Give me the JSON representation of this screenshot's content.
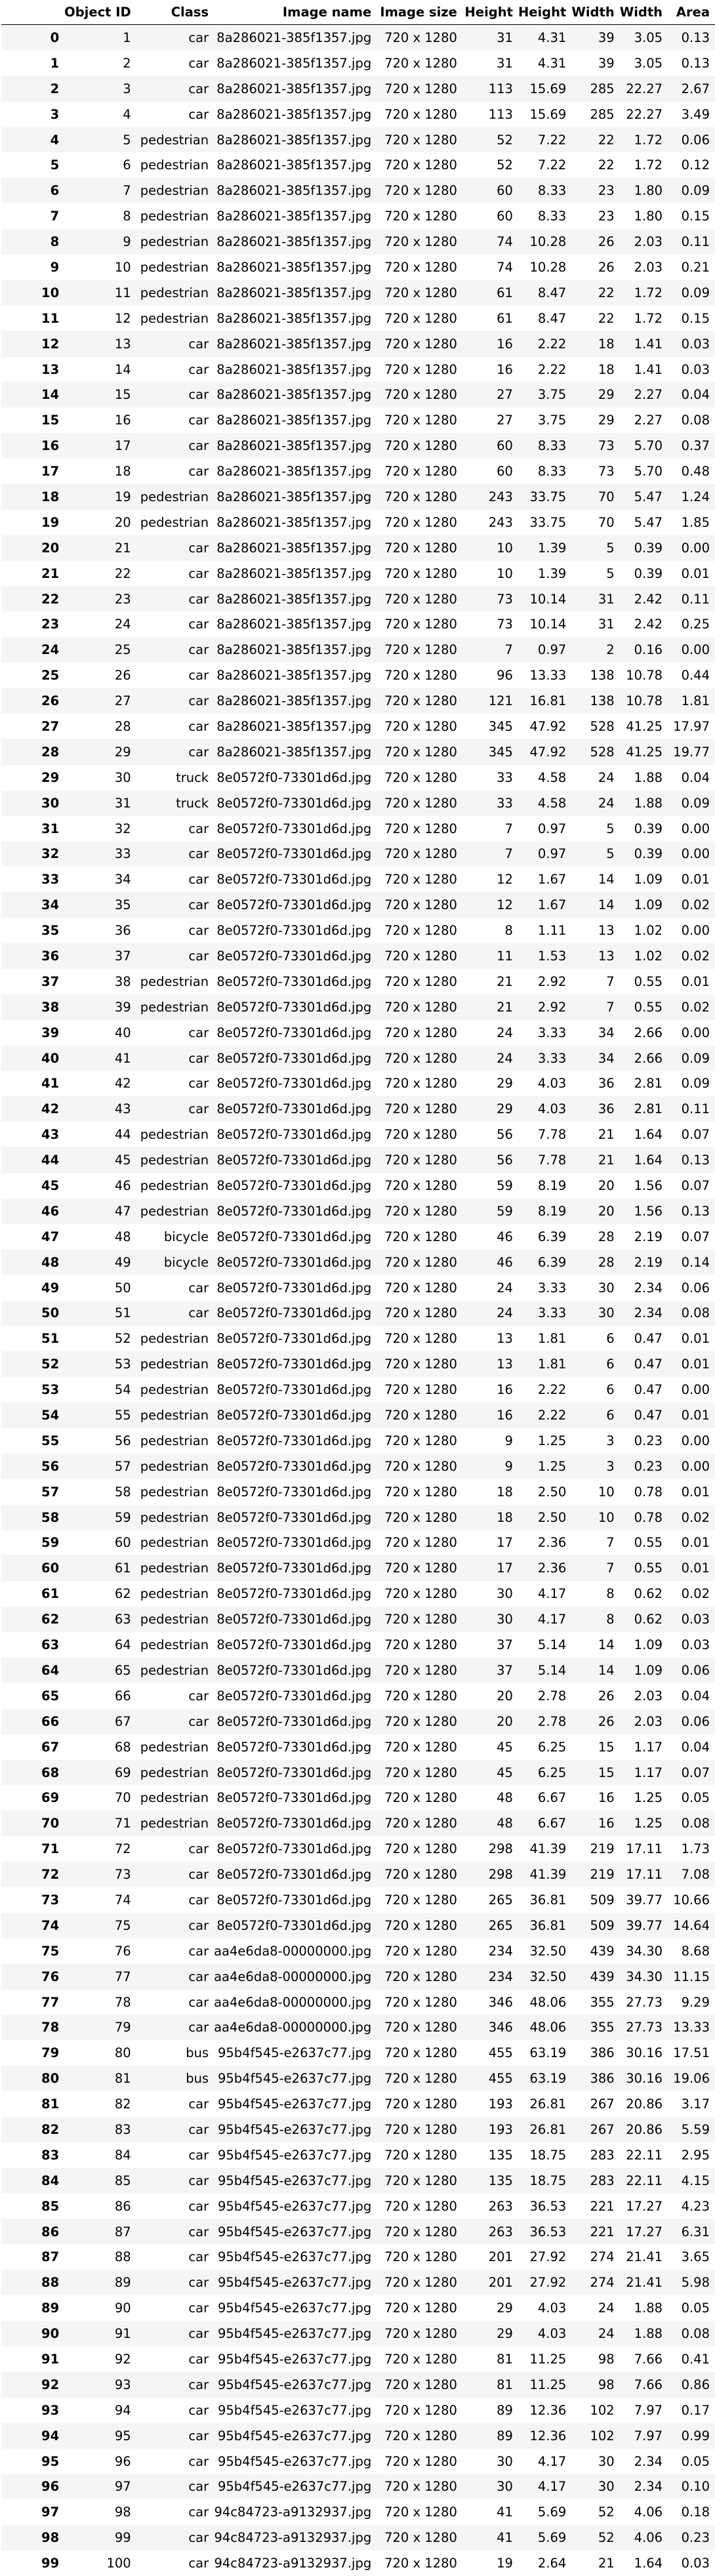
{
  "table": {
    "columns": [
      "",
      "Object ID",
      "Class",
      "Image name",
      "Image size",
      "Height",
      "Height",
      "Width",
      "Width",
      "Area"
    ],
    "rows": [
      [
        "0",
        "1",
        "car",
        "8a286021-385f1357.jpg",
        "720 x 1280",
        "31",
        "4.31",
        "39",
        "3.05",
        "0.13"
      ],
      [
        "1",
        "2",
        "car",
        "8a286021-385f1357.jpg",
        "720 x 1280",
        "31",
        "4.31",
        "39",
        "3.05",
        "0.13"
      ],
      [
        "2",
        "3",
        "car",
        "8a286021-385f1357.jpg",
        "720 x 1280",
        "113",
        "15.69",
        "285",
        "22.27",
        "2.67"
      ],
      [
        "3",
        "4",
        "car",
        "8a286021-385f1357.jpg",
        "720 x 1280",
        "113",
        "15.69",
        "285",
        "22.27",
        "3.49"
      ],
      [
        "4",
        "5",
        "pedestrian",
        "8a286021-385f1357.jpg",
        "720 x 1280",
        "52",
        "7.22",
        "22",
        "1.72",
        "0.06"
      ],
      [
        "5",
        "6",
        "pedestrian",
        "8a286021-385f1357.jpg",
        "720 x 1280",
        "52",
        "7.22",
        "22",
        "1.72",
        "0.12"
      ],
      [
        "6",
        "7",
        "pedestrian",
        "8a286021-385f1357.jpg",
        "720 x 1280",
        "60",
        "8.33",
        "23",
        "1.80",
        "0.09"
      ],
      [
        "7",
        "8",
        "pedestrian",
        "8a286021-385f1357.jpg",
        "720 x 1280",
        "60",
        "8.33",
        "23",
        "1.80",
        "0.15"
      ],
      [
        "8",
        "9",
        "pedestrian",
        "8a286021-385f1357.jpg",
        "720 x 1280",
        "74",
        "10.28",
        "26",
        "2.03",
        "0.11"
      ],
      [
        "9",
        "10",
        "pedestrian",
        "8a286021-385f1357.jpg",
        "720 x 1280",
        "74",
        "10.28",
        "26",
        "2.03",
        "0.21"
      ],
      [
        "10",
        "11",
        "pedestrian",
        "8a286021-385f1357.jpg",
        "720 x 1280",
        "61",
        "8.47",
        "22",
        "1.72",
        "0.09"
      ],
      [
        "11",
        "12",
        "pedestrian",
        "8a286021-385f1357.jpg",
        "720 x 1280",
        "61",
        "8.47",
        "22",
        "1.72",
        "0.15"
      ],
      [
        "12",
        "13",
        "car",
        "8a286021-385f1357.jpg",
        "720 x 1280",
        "16",
        "2.22",
        "18",
        "1.41",
        "0.03"
      ],
      [
        "13",
        "14",
        "car",
        "8a286021-385f1357.jpg",
        "720 x 1280",
        "16",
        "2.22",
        "18",
        "1.41",
        "0.03"
      ],
      [
        "14",
        "15",
        "car",
        "8a286021-385f1357.jpg",
        "720 x 1280",
        "27",
        "3.75",
        "29",
        "2.27",
        "0.04"
      ],
      [
        "15",
        "16",
        "car",
        "8a286021-385f1357.jpg",
        "720 x 1280",
        "27",
        "3.75",
        "29",
        "2.27",
        "0.08"
      ],
      [
        "16",
        "17",
        "car",
        "8a286021-385f1357.jpg",
        "720 x 1280",
        "60",
        "8.33",
        "73",
        "5.70",
        "0.37"
      ],
      [
        "17",
        "18",
        "car",
        "8a286021-385f1357.jpg",
        "720 x 1280",
        "60",
        "8.33",
        "73",
        "5.70",
        "0.48"
      ],
      [
        "18",
        "19",
        "pedestrian",
        "8a286021-385f1357.jpg",
        "720 x 1280",
        "243",
        "33.75",
        "70",
        "5.47",
        "1.24"
      ],
      [
        "19",
        "20",
        "pedestrian",
        "8a286021-385f1357.jpg",
        "720 x 1280",
        "243",
        "33.75",
        "70",
        "5.47",
        "1.85"
      ],
      [
        "20",
        "21",
        "car",
        "8a286021-385f1357.jpg",
        "720 x 1280",
        "10",
        "1.39",
        "5",
        "0.39",
        "0.00"
      ],
      [
        "21",
        "22",
        "car",
        "8a286021-385f1357.jpg",
        "720 x 1280",
        "10",
        "1.39",
        "5",
        "0.39",
        "0.01"
      ],
      [
        "22",
        "23",
        "car",
        "8a286021-385f1357.jpg",
        "720 x 1280",
        "73",
        "10.14",
        "31",
        "2.42",
        "0.11"
      ],
      [
        "23",
        "24",
        "car",
        "8a286021-385f1357.jpg",
        "720 x 1280",
        "73",
        "10.14",
        "31",
        "2.42",
        "0.25"
      ],
      [
        "24",
        "25",
        "car",
        "8a286021-385f1357.jpg",
        "720 x 1280",
        "7",
        "0.97",
        "2",
        "0.16",
        "0.00"
      ],
      [
        "25",
        "26",
        "car",
        "8a286021-385f1357.jpg",
        "720 x 1280",
        "96",
        "13.33",
        "138",
        "10.78",
        "0.44"
      ],
      [
        "26",
        "27",
        "car",
        "8a286021-385f1357.jpg",
        "720 x 1280",
        "121",
        "16.81",
        "138",
        "10.78",
        "1.81"
      ],
      [
        "27",
        "28",
        "car",
        "8a286021-385f1357.jpg",
        "720 x 1280",
        "345",
        "47.92",
        "528",
        "41.25",
        "17.97"
      ],
      [
        "28",
        "29",
        "car",
        "8a286021-385f1357.jpg",
        "720 x 1280",
        "345",
        "47.92",
        "528",
        "41.25",
        "19.77"
      ],
      [
        "29",
        "30",
        "truck",
        "8e0572f0-73301d6d.jpg",
        "720 x 1280",
        "33",
        "4.58",
        "24",
        "1.88",
        "0.04"
      ],
      [
        "30",
        "31",
        "truck",
        "8e0572f0-73301d6d.jpg",
        "720 x 1280",
        "33",
        "4.58",
        "24",
        "1.88",
        "0.09"
      ],
      [
        "31",
        "32",
        "car",
        "8e0572f0-73301d6d.jpg",
        "720 x 1280",
        "7",
        "0.97",
        "5",
        "0.39",
        "0.00"
      ],
      [
        "32",
        "33",
        "car",
        "8e0572f0-73301d6d.jpg",
        "720 x 1280",
        "7",
        "0.97",
        "5",
        "0.39",
        "0.00"
      ],
      [
        "33",
        "34",
        "car",
        "8e0572f0-73301d6d.jpg",
        "720 x 1280",
        "12",
        "1.67",
        "14",
        "1.09",
        "0.01"
      ],
      [
        "34",
        "35",
        "car",
        "8e0572f0-73301d6d.jpg",
        "720 x 1280",
        "12",
        "1.67",
        "14",
        "1.09",
        "0.02"
      ],
      [
        "35",
        "36",
        "car",
        "8e0572f0-73301d6d.jpg",
        "720 x 1280",
        "8",
        "1.11",
        "13",
        "1.02",
        "0.00"
      ],
      [
        "36",
        "37",
        "car",
        "8e0572f0-73301d6d.jpg",
        "720 x 1280",
        "11",
        "1.53",
        "13",
        "1.02",
        "0.02"
      ],
      [
        "37",
        "38",
        "pedestrian",
        "8e0572f0-73301d6d.jpg",
        "720 x 1280",
        "21",
        "2.92",
        "7",
        "0.55",
        "0.01"
      ],
      [
        "38",
        "39",
        "pedestrian",
        "8e0572f0-73301d6d.jpg",
        "720 x 1280",
        "21",
        "2.92",
        "7",
        "0.55",
        "0.02"
      ],
      [
        "39",
        "40",
        "car",
        "8e0572f0-73301d6d.jpg",
        "720 x 1280",
        "24",
        "3.33",
        "34",
        "2.66",
        "0.00"
      ],
      [
        "40",
        "41",
        "car",
        "8e0572f0-73301d6d.jpg",
        "720 x 1280",
        "24",
        "3.33",
        "34",
        "2.66",
        "0.09"
      ],
      [
        "41",
        "42",
        "car",
        "8e0572f0-73301d6d.jpg",
        "720 x 1280",
        "29",
        "4.03",
        "36",
        "2.81",
        "0.09"
      ],
      [
        "42",
        "43",
        "car",
        "8e0572f0-73301d6d.jpg",
        "720 x 1280",
        "29",
        "4.03",
        "36",
        "2.81",
        "0.11"
      ],
      [
        "43",
        "44",
        "pedestrian",
        "8e0572f0-73301d6d.jpg",
        "720 x 1280",
        "56",
        "7.78",
        "21",
        "1.64",
        "0.07"
      ],
      [
        "44",
        "45",
        "pedestrian",
        "8e0572f0-73301d6d.jpg",
        "720 x 1280",
        "56",
        "7.78",
        "21",
        "1.64",
        "0.13"
      ],
      [
        "45",
        "46",
        "pedestrian",
        "8e0572f0-73301d6d.jpg",
        "720 x 1280",
        "59",
        "8.19",
        "20",
        "1.56",
        "0.07"
      ],
      [
        "46",
        "47",
        "pedestrian",
        "8e0572f0-73301d6d.jpg",
        "720 x 1280",
        "59",
        "8.19",
        "20",
        "1.56",
        "0.13"
      ],
      [
        "47",
        "48",
        "bicycle",
        "8e0572f0-73301d6d.jpg",
        "720 x 1280",
        "46",
        "6.39",
        "28",
        "2.19",
        "0.07"
      ],
      [
        "48",
        "49",
        "bicycle",
        "8e0572f0-73301d6d.jpg",
        "720 x 1280",
        "46",
        "6.39",
        "28",
        "2.19",
        "0.14"
      ],
      [
        "49",
        "50",
        "car",
        "8e0572f0-73301d6d.jpg",
        "720 x 1280",
        "24",
        "3.33",
        "30",
        "2.34",
        "0.06"
      ],
      [
        "50",
        "51",
        "car",
        "8e0572f0-73301d6d.jpg",
        "720 x 1280",
        "24",
        "3.33",
        "30",
        "2.34",
        "0.08"
      ],
      [
        "51",
        "52",
        "pedestrian",
        "8e0572f0-73301d6d.jpg",
        "720 x 1280",
        "13",
        "1.81",
        "6",
        "0.47",
        "0.01"
      ],
      [
        "52",
        "53",
        "pedestrian",
        "8e0572f0-73301d6d.jpg",
        "720 x 1280",
        "13",
        "1.81",
        "6",
        "0.47",
        "0.01"
      ],
      [
        "53",
        "54",
        "pedestrian",
        "8e0572f0-73301d6d.jpg",
        "720 x 1280",
        "16",
        "2.22",
        "6",
        "0.47",
        "0.00"
      ],
      [
        "54",
        "55",
        "pedestrian",
        "8e0572f0-73301d6d.jpg",
        "720 x 1280",
        "16",
        "2.22",
        "6",
        "0.47",
        "0.01"
      ],
      [
        "55",
        "56",
        "pedestrian",
        "8e0572f0-73301d6d.jpg",
        "720 x 1280",
        "9",
        "1.25",
        "3",
        "0.23",
        "0.00"
      ],
      [
        "56",
        "57",
        "pedestrian",
        "8e0572f0-73301d6d.jpg",
        "720 x 1280",
        "9",
        "1.25",
        "3",
        "0.23",
        "0.00"
      ],
      [
        "57",
        "58",
        "pedestrian",
        "8e0572f0-73301d6d.jpg",
        "720 x 1280",
        "18",
        "2.50",
        "10",
        "0.78",
        "0.01"
      ],
      [
        "58",
        "59",
        "pedestrian",
        "8e0572f0-73301d6d.jpg",
        "720 x 1280",
        "18",
        "2.50",
        "10",
        "0.78",
        "0.02"
      ],
      [
        "59",
        "60",
        "pedestrian",
        "8e0572f0-73301d6d.jpg",
        "720 x 1280",
        "17",
        "2.36",
        "7",
        "0.55",
        "0.01"
      ],
      [
        "60",
        "61",
        "pedestrian",
        "8e0572f0-73301d6d.jpg",
        "720 x 1280",
        "17",
        "2.36",
        "7",
        "0.55",
        "0.01"
      ],
      [
        "61",
        "62",
        "pedestrian",
        "8e0572f0-73301d6d.jpg",
        "720 x 1280",
        "30",
        "4.17",
        "8",
        "0.62",
        "0.02"
      ],
      [
        "62",
        "63",
        "pedestrian",
        "8e0572f0-73301d6d.jpg",
        "720 x 1280",
        "30",
        "4.17",
        "8",
        "0.62",
        "0.03"
      ],
      [
        "63",
        "64",
        "pedestrian",
        "8e0572f0-73301d6d.jpg",
        "720 x 1280",
        "37",
        "5.14",
        "14",
        "1.09",
        "0.03"
      ],
      [
        "64",
        "65",
        "pedestrian",
        "8e0572f0-73301d6d.jpg",
        "720 x 1280",
        "37",
        "5.14",
        "14",
        "1.09",
        "0.06"
      ],
      [
        "65",
        "66",
        "car",
        "8e0572f0-73301d6d.jpg",
        "720 x 1280",
        "20",
        "2.78",
        "26",
        "2.03",
        "0.04"
      ],
      [
        "66",
        "67",
        "car",
        "8e0572f0-73301d6d.jpg",
        "720 x 1280",
        "20",
        "2.78",
        "26",
        "2.03",
        "0.06"
      ],
      [
        "67",
        "68",
        "pedestrian",
        "8e0572f0-73301d6d.jpg",
        "720 x 1280",
        "45",
        "6.25",
        "15",
        "1.17",
        "0.04"
      ],
      [
        "68",
        "69",
        "pedestrian",
        "8e0572f0-73301d6d.jpg",
        "720 x 1280",
        "45",
        "6.25",
        "15",
        "1.17",
        "0.07"
      ],
      [
        "69",
        "70",
        "pedestrian",
        "8e0572f0-73301d6d.jpg",
        "720 x 1280",
        "48",
        "6.67",
        "16",
        "1.25",
        "0.05"
      ],
      [
        "70",
        "71",
        "pedestrian",
        "8e0572f0-73301d6d.jpg",
        "720 x 1280",
        "48",
        "6.67",
        "16",
        "1.25",
        "0.08"
      ],
      [
        "71",
        "72",
        "car",
        "8e0572f0-73301d6d.jpg",
        "720 x 1280",
        "298",
        "41.39",
        "219",
        "17.11",
        "1.73"
      ],
      [
        "72",
        "73",
        "car",
        "8e0572f0-73301d6d.jpg",
        "720 x 1280",
        "298",
        "41.39",
        "219",
        "17.11",
        "7.08"
      ],
      [
        "73",
        "74",
        "car",
        "8e0572f0-73301d6d.jpg",
        "720 x 1280",
        "265",
        "36.81",
        "509",
        "39.77",
        "10.66"
      ],
      [
        "74",
        "75",
        "car",
        "8e0572f0-73301d6d.jpg",
        "720 x 1280",
        "265",
        "36.81",
        "509",
        "39.77",
        "14.64"
      ],
      [
        "75",
        "76",
        "car",
        "aa4e6da8-00000000.jpg",
        "720 x 1280",
        "234",
        "32.50",
        "439",
        "34.30",
        "8.68"
      ],
      [
        "76",
        "77",
        "car",
        "aa4e6da8-00000000.jpg",
        "720 x 1280",
        "234",
        "32.50",
        "439",
        "34.30",
        "11.15"
      ],
      [
        "77",
        "78",
        "car",
        "aa4e6da8-00000000.jpg",
        "720 x 1280",
        "346",
        "48.06",
        "355",
        "27.73",
        "9.29"
      ],
      [
        "78",
        "79",
        "car",
        "aa4e6da8-00000000.jpg",
        "720 x 1280",
        "346",
        "48.06",
        "355",
        "27.73",
        "13.33"
      ],
      [
        "79",
        "80",
        "bus",
        "95b4f545-e2637c77.jpg",
        "720 x 1280",
        "455",
        "63.19",
        "386",
        "30.16",
        "17.51"
      ],
      [
        "80",
        "81",
        "bus",
        "95b4f545-e2637c77.jpg",
        "720 x 1280",
        "455",
        "63.19",
        "386",
        "30.16",
        "19.06"
      ],
      [
        "81",
        "82",
        "car",
        "95b4f545-e2637c77.jpg",
        "720 x 1280",
        "193",
        "26.81",
        "267",
        "20.86",
        "3.17"
      ],
      [
        "82",
        "83",
        "car",
        "95b4f545-e2637c77.jpg",
        "720 x 1280",
        "193",
        "26.81",
        "267",
        "20.86",
        "5.59"
      ],
      [
        "83",
        "84",
        "car",
        "95b4f545-e2637c77.jpg",
        "720 x 1280",
        "135",
        "18.75",
        "283",
        "22.11",
        "2.95"
      ],
      [
        "84",
        "85",
        "car",
        "95b4f545-e2637c77.jpg",
        "720 x 1280",
        "135",
        "18.75",
        "283",
        "22.11",
        "4.15"
      ],
      [
        "85",
        "86",
        "car",
        "95b4f545-e2637c77.jpg",
        "720 x 1280",
        "263",
        "36.53",
        "221",
        "17.27",
        "4.23"
      ],
      [
        "86",
        "87",
        "car",
        "95b4f545-e2637c77.jpg",
        "720 x 1280",
        "263",
        "36.53",
        "221",
        "17.27",
        "6.31"
      ],
      [
        "87",
        "88",
        "car",
        "95b4f545-e2637c77.jpg",
        "720 x 1280",
        "201",
        "27.92",
        "274",
        "21.41",
        "3.65"
      ],
      [
        "88",
        "89",
        "car",
        "95b4f545-e2637c77.jpg",
        "720 x 1280",
        "201",
        "27.92",
        "274",
        "21.41",
        "5.98"
      ],
      [
        "89",
        "90",
        "car",
        "95b4f545-e2637c77.jpg",
        "720 x 1280",
        "29",
        "4.03",
        "24",
        "1.88",
        "0.05"
      ],
      [
        "90",
        "91",
        "car",
        "95b4f545-e2637c77.jpg",
        "720 x 1280",
        "29",
        "4.03",
        "24",
        "1.88",
        "0.08"
      ],
      [
        "91",
        "92",
        "car",
        "95b4f545-e2637c77.jpg",
        "720 x 1280",
        "81",
        "11.25",
        "98",
        "7.66",
        "0.41"
      ],
      [
        "92",
        "93",
        "car",
        "95b4f545-e2637c77.jpg",
        "720 x 1280",
        "81",
        "11.25",
        "98",
        "7.66",
        "0.86"
      ],
      [
        "93",
        "94",
        "car",
        "95b4f545-e2637c77.jpg",
        "720 x 1280",
        "89",
        "12.36",
        "102",
        "7.97",
        "0.17"
      ],
      [
        "94",
        "95",
        "car",
        "95b4f545-e2637c77.jpg",
        "720 x 1280",
        "89",
        "12.36",
        "102",
        "7.97",
        "0.99"
      ],
      [
        "95",
        "96",
        "car",
        "95b4f545-e2637c77.jpg",
        "720 x 1280",
        "30",
        "4.17",
        "30",
        "2.34",
        "0.05"
      ],
      [
        "96",
        "97",
        "car",
        "95b4f545-e2637c77.jpg",
        "720 x 1280",
        "30",
        "4.17",
        "30",
        "2.34",
        "0.10"
      ],
      [
        "97",
        "98",
        "car",
        "94c84723-a9132937.jpg",
        "720 x 1280",
        "41",
        "5.69",
        "52",
        "4.06",
        "0.18"
      ],
      [
        "98",
        "99",
        "car",
        "94c84723-a9132937.jpg",
        "720 x 1280",
        "41",
        "5.69",
        "52",
        "4.06",
        "0.23"
      ],
      [
        "99",
        "100",
        "car",
        "94c84723-a9132937.jpg",
        "720 x 1280",
        "19",
        "2.64",
        "21",
        "1.64",
        "0.03"
      ]
    ]
  }
}
